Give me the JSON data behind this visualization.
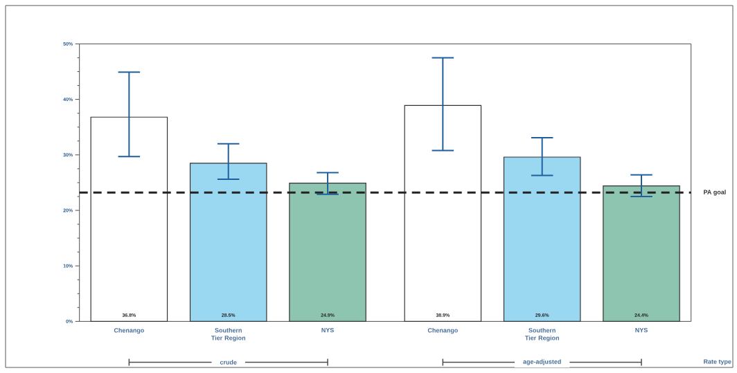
{
  "chart_data": {
    "type": "bar",
    "categories": [
      "Chenango",
      "Southern Tier Region",
      "NYS",
      "Chenango",
      "Southern Tier Region",
      "NYS"
    ],
    "values": [
      36.8,
      28.5,
      24.9,
      38.9,
      29.6,
      24.4
    ],
    "colors": [
      "#ffffff",
      "#9ad7f0",
      "#8ec5b1",
      "#ffffff",
      "#9ad7f0",
      "#8ec5b1"
    ],
    "errors": [
      [
        29.7,
        44.9
      ],
      [
        25.6,
        32.0
      ],
      [
        22.9,
        26.8
      ],
      [
        30.8,
        47.5
      ],
      [
        26.3,
        33.1
      ],
      [
        22.5,
        26.4
      ]
    ],
    "value_labels": [
      "36.8%",
      "28.5%",
      "24.9%",
      "38.9%",
      "29.6%",
      "24.4%"
    ],
    "ylim": [
      0,
      50
    ],
    "yticks": [
      {
        "value": 0,
        "label": "0%"
      },
      {
        "value": 2.5,
        "label": null
      },
      {
        "value": 5,
        "label": null
      },
      {
        "value": 7.5,
        "label": null
      },
      {
        "value": 10,
        "label": "10%"
      },
      {
        "value": 12.5,
        "label": null
      },
      {
        "value": 15,
        "label": null
      },
      {
        "value": 17.5,
        "label": null
      },
      {
        "value": 20,
        "label": "20%"
      },
      {
        "value": 22.5,
        "label": null
      },
      {
        "value": 25,
        "label": null
      },
      {
        "value": 27.5,
        "label": null
      },
      {
        "value": 30,
        "label": "30%"
      },
      {
        "value": 32.5,
        "label": null
      },
      {
        "value": 35,
        "label": null
      },
      {
        "value": 37.5,
        "label": null
      },
      {
        "value": 40,
        "label": "40%"
      },
      {
        "value": 42.5,
        "label": null
      },
      {
        "value": 45,
        "label": null
      },
      {
        "value": 47.5,
        "label": null
      },
      {
        "value": 50,
        "label": "50%"
      }
    ],
    "ref_lines": [
      {
        "axis": "y",
        "value": 23.2,
        "label": "PA goal",
        "color": "#222222",
        "line_style": "dashed"
      }
    ],
    "annotations": [
      "crude",
      "age-adjusted",
      "Rate type"
    ]
  }
}
